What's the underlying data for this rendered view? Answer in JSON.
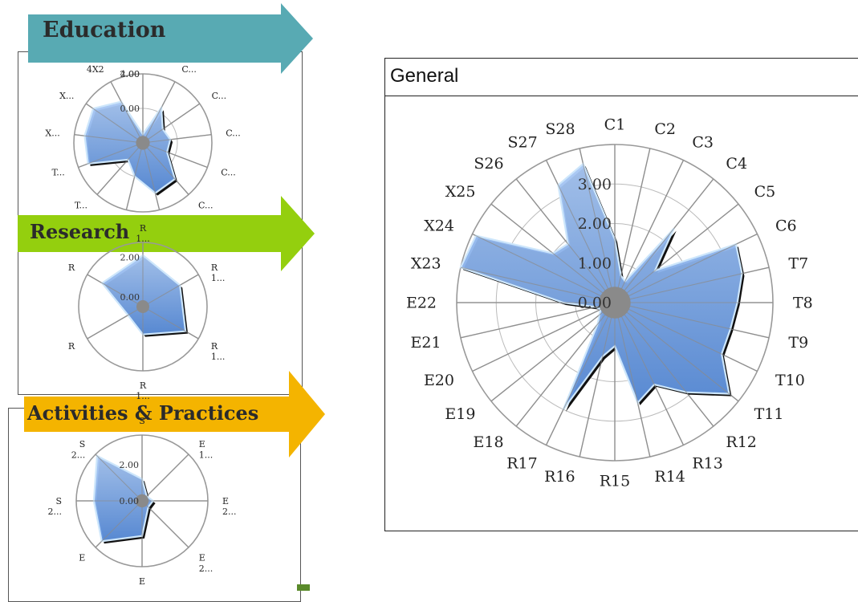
{
  "panels": {
    "education": {
      "title": "Education",
      "color": "#58aab3"
    },
    "research": {
      "title": "Research",
      "color": "#94cf0e"
    },
    "activities": {
      "title": "Activities & Practices",
      "color": "#f4b400"
    },
    "general": {
      "title": "General"
    }
  },
  "chart_data": [
    {
      "type": "radar",
      "title": "Education",
      "categories": [
        "C...",
        "C...",
        "C...",
        "C...",
        "C...",
        "C...",
        "T...",
        "T...",
        "T...",
        "T...",
        "X...",
        "X...",
        "4X2"
      ],
      "ticks": [
        "0.00",
        "2.00",
        "4.00"
      ],
      "tick_labels_shown": [
        "0.00",
        "2.00",
        "4.00"
      ],
      "rmax": 4,
      "series": [
        {
          "values": [
            0.5,
            2.3,
            1.4,
            1.6,
            1.5,
            2.8,
            3.0,
            2.0,
            1.3,
            3.4,
            3.4,
            3.5,
            2.7
          ]
        }
      ]
    },
    {
      "type": "radar",
      "title": "Research",
      "categories": [
        "R",
        "R",
        "R",
        "R",
        "R",
        "R"
      ],
      "sublabels": [
        "1...",
        "1...",
        "1...",
        "1...",
        "",
        ""
      ],
      "ticks": [
        "0.00",
        "2.00"
      ],
      "rmax": 3,
      "series": [
        {
          "values": [
            2.4,
            2.0,
            2.3,
            1.3,
            0.8,
            2.2
          ]
        }
      ]
    },
    {
      "type": "radar",
      "title": "Activities & Practices",
      "categories": [
        "S",
        "E",
        "E",
        "E",
        "E",
        "E",
        "S",
        "S"
      ],
      "sublabels": [
        "",
        "1...",
        "2...",
        "2...",
        "",
        "",
        "2...",
        "2..."
      ],
      "ticks": [
        "0.00",
        "2.00"
      ],
      "rmax": 3,
      "series": [
        {
          "values": [
            1.0,
            0.3,
            0.5,
            0.4,
            1.6,
            2.6,
            2.2,
            2.9
          ]
        }
      ]
    },
    {
      "type": "radar",
      "title": "General",
      "categories": [
        "C1",
        "C2",
        "C3",
        "C4",
        "C5",
        "C6",
        "T7",
        "T8",
        "T9",
        "T10",
        "T11",
        "R12",
        "R13",
        "R14",
        "R15",
        "R16",
        "R17",
        "E18",
        "E19",
        "E20",
        "E21",
        "E22",
        "X23",
        "X24",
        "X25",
        "S26",
        "S27",
        "S28"
      ],
      "ticks": [
        "0.00",
        "1.00",
        "2.00",
        "3.00",
        "4.00"
      ],
      "tick_labels_shown": [
        "0.00",
        "1.00",
        "2.00",
        "3.00"
      ],
      "rmax": 4,
      "series": [
        {
          "values": [
            1.6,
            0.7,
            0.6,
            2.4,
            1.3,
            3.4,
            3.3,
            3.1,
            3.0,
            3.0,
            3.7,
            2.9,
            2.3,
            2.6,
            1.1,
            1.4,
            3.0,
            0.7,
            0.5,
            0.4,
            0.5,
            1.3,
            4.1,
            3.9,
            2.0,
            1.9,
            3.3,
            3.6
          ]
        }
      ]
    }
  ]
}
